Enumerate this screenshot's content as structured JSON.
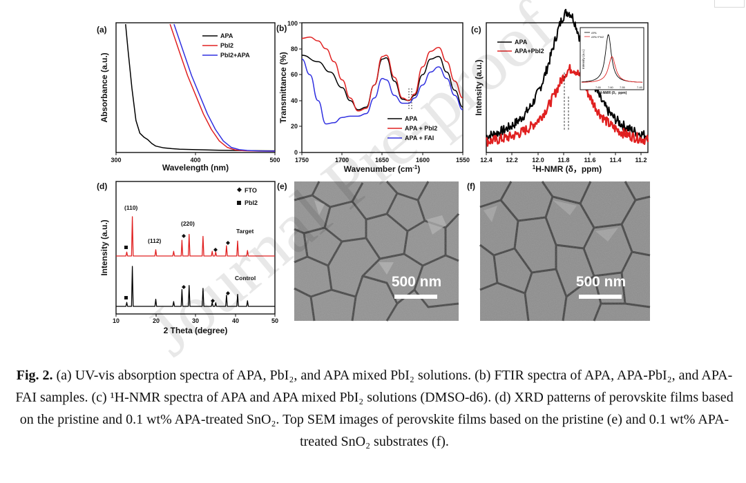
{
  "chart_data": [
    {
      "panel": "(a)",
      "type": "line",
      "xlabel": "Wavelength (nm)",
      "ylabel": "Absorbance (a.u.)",
      "xlim": [
        300,
        500
      ],
      "xticks": [
        "300",
        "400",
        "500"
      ],
      "series": [
        {
          "name": "APA",
          "color": "#000000",
          "x": [
            312,
            315,
            320,
            325,
            330,
            335,
            340,
            345,
            350,
            360,
            370,
            380,
            400,
            430,
            460,
            500
          ],
          "y": [
            1.0,
            0.8,
            0.5,
            0.25,
            0.15,
            0.12,
            0.1,
            0.07,
            0.05,
            0.036,
            0.03,
            0.026,
            0.022,
            0.018,
            0.015,
            0.013
          ]
        },
        {
          "name": "PbI2",
          "color": "#e02020",
          "x": [
            368,
            380,
            390,
            400,
            410,
            420,
            430,
            440,
            450,
            460,
            480,
            500
          ],
          "y": [
            1.0,
            0.78,
            0.6,
            0.45,
            0.3,
            0.18,
            0.09,
            0.04,
            0.02,
            0.014,
            0.011,
            0.01
          ]
        },
        {
          "name": "PbI2+APA",
          "color": "#2f2fe0",
          "x": [
            373,
            385,
            395,
            405,
            415,
            425,
            435,
            445,
            455,
            465,
            480,
            500
          ],
          "y": [
            1.0,
            0.78,
            0.6,
            0.45,
            0.3,
            0.18,
            0.09,
            0.04,
            0.022,
            0.016,
            0.012,
            0.011
          ]
        }
      ]
    },
    {
      "panel": "(b)",
      "type": "line",
      "xlabel": "Wavenumber (cm-1)",
      "ylabel": "Transmittance (%)",
      "xlim": [
        1750,
        1550
      ],
      "ylim": [
        0,
        100
      ],
      "xticks": [
        "1750",
        "1700",
        "1650",
        "1600",
        "1550"
      ],
      "yticks": [
        "0",
        "20",
        "40",
        "60",
        "80",
        "100"
      ],
      "series": [
        {
          "name": "APA",
          "color": "#000000",
          "x": [
            1750,
            1730,
            1715,
            1700,
            1690,
            1680,
            1670,
            1660,
            1650,
            1645,
            1635,
            1625,
            1617,
            1610,
            1600,
            1590,
            1580,
            1570,
            1560,
            1550
          ],
          "y": [
            75,
            70,
            62,
            50,
            40,
            33,
            35,
            52,
            72,
            73,
            55,
            41,
            40,
            44,
            60,
            72,
            74,
            62,
            48,
            35
          ]
        },
        {
          "name": "APA + PbI2",
          "color": "#e02020",
          "x": [
            1750,
            1740,
            1730,
            1720,
            1710,
            1700,
            1690,
            1680,
            1670,
            1660,
            1650,
            1645,
            1635,
            1625,
            1617,
            1610,
            1600,
            1590,
            1580,
            1570,
            1560,
            1550
          ],
          "y": [
            88,
            89,
            86,
            80,
            70,
            56,
            42,
            32,
            34,
            52,
            74,
            75,
            58,
            42,
            40,
            45,
            66,
            78,
            81,
            70,
            55,
            42
          ]
        },
        {
          "name": "APA + FAI",
          "color": "#2f2fe0",
          "x": [
            1750,
            1740,
            1730,
            1720,
            1710,
            1700,
            1690,
            1680,
            1670,
            1660,
            1650,
            1645,
            1635,
            1625,
            1617,
            1610,
            1600,
            1590,
            1580,
            1570,
            1560,
            1550
          ],
          "y": [
            72,
            60,
            40,
            22,
            23,
            27,
            28,
            28,
            30,
            42,
            57,
            56,
            44,
            38,
            38,
            42,
            52,
            62,
            66,
            57,
            44,
            33
          ]
        }
      ],
      "annotation": "dashed markers near 1617 cm-1"
    },
    {
      "panel": "(c)",
      "type": "line",
      "xlabel": "1H-NMR (δ，ppm)",
      "ylabel": "Intensity (a.u.)",
      "xlim": [
        12.4,
        11.15
      ],
      "xticks": [
        "12.4",
        "12.2",
        "12.0",
        "11.8",
        "11.6",
        "11.4",
        "11.2"
      ],
      "series": [
        {
          "name": "APA",
          "color": "#000000",
          "center": 11.77,
          "peak": 55,
          "baseline": 2
        },
        {
          "name": "APA+PbI2",
          "color": "#e02020",
          "center": 11.74,
          "peak": 32,
          "baseline": 2
        }
      ],
      "inset": {
        "xlabel": "1H-NMR (δ，ppm)",
        "ylabel": "Intensity (a.u.)",
        "xticks": [
          "7.65",
          "7.60",
          "7.55",
          "7.45"
        ],
        "legend": [
          "APA",
          "APA+PbI2"
        ]
      }
    },
    {
      "panel": "(d)",
      "type": "line",
      "xlabel": "2 Theta (degree)",
      "ylabel": "Intensity (a.u.)",
      "xlim": [
        10,
        50
      ],
      "xticks": [
        "10",
        "20",
        "30",
        "40",
        "50"
      ],
      "peaks": [
        12.7,
        14.1,
        20.0,
        24.5,
        26.6,
        28.4,
        31.9,
        34.2,
        35.1,
        37.8,
        40.6,
        43.1
      ],
      "series": [
        {
          "name": "Target",
          "color": "#e02020",
          "heights": [
            0.1,
            1.0,
            0.16,
            0.12,
            0.4,
            0.55,
            0.5,
            0.12,
            0.1,
            0.26,
            0.38,
            0.14
          ]
        },
        {
          "name": "Control",
          "color": "#000000",
          "heights": [
            0.1,
            1.0,
            0.18,
            0.12,
            0.42,
            0.52,
            0.45,
            0.1,
            0.09,
            0.28,
            0.3,
            0.14
          ]
        }
      ],
      "peak_labels": [
        "(110)",
        "(112)",
        "(220)"
      ],
      "legend": [
        "FTO",
        "PbI2"
      ],
      "series_labels": [
        "Target",
        "Control"
      ]
    }
  ],
  "sem": [
    {
      "panel": "(e)",
      "scale_bar": "500 nm"
    },
    {
      "panel": "(f)",
      "scale_bar": "500 nm"
    }
  ],
  "watermark": "Journal Pre-proof",
  "caption": {
    "prefix": "Fig. 2.",
    "text": "(a) UV-vis absorption spectra of APA, PbI₂, and APA mixed PbI₂ solutions. (b) FTIR spectra of APA, APA-PbI₂, and APA-FAI samples. (c) ¹H-NMR spectra of APA and APA mixed PbI₂ solutions (DMSO-d6). (d) XRD patterns of perovskite films based on the pristine and 0.1 wt% APA-treated SnO₂. Top SEM images of perovskite films based on the pristine (e) and 0.1 wt% APA-treated SnO₂ substrates (f)."
  }
}
